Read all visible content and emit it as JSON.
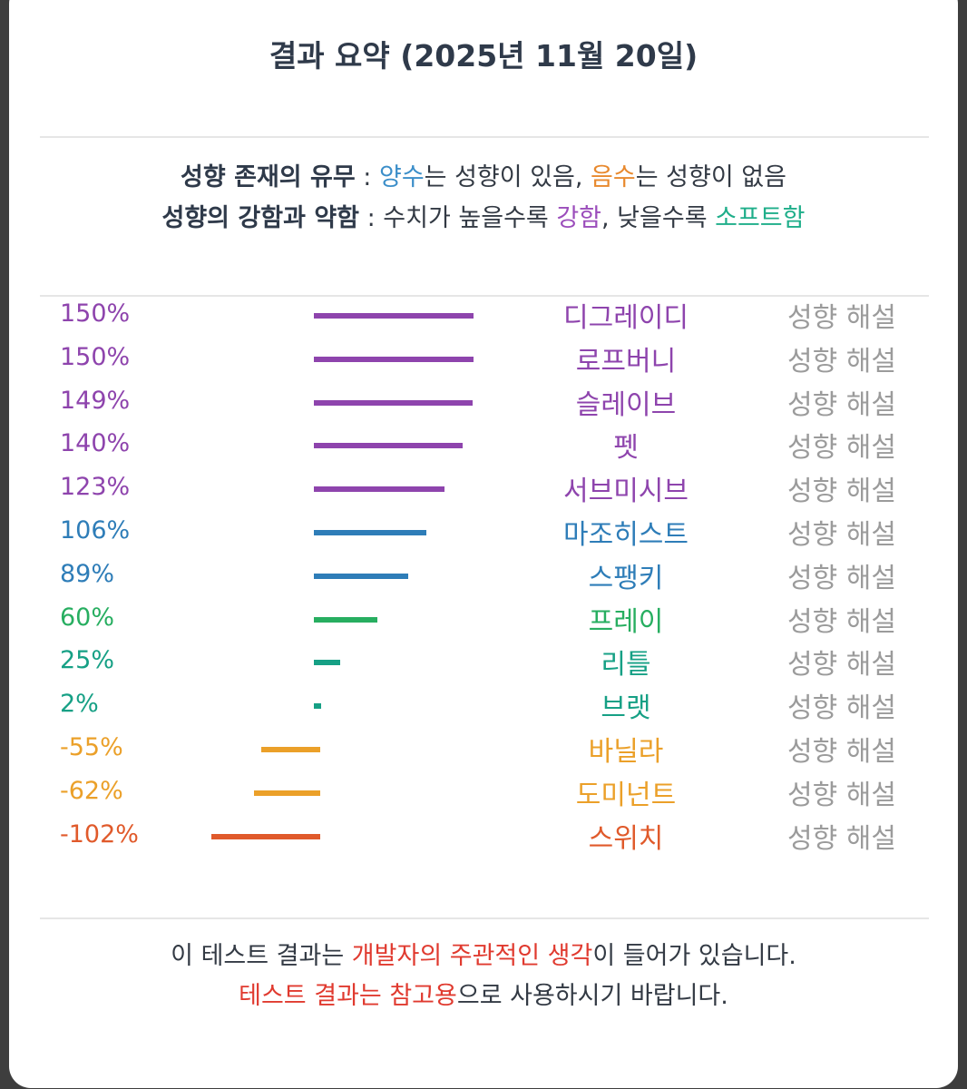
{
  "title": "결과 요약 (2025년 11월 20일)",
  "legend": {
    "line1": {
      "label": "성향 존재의 유무",
      "sep": " : ",
      "positive_word": "양수",
      "positive_rest": "는 성향이 있음, ",
      "negative_word": "음수",
      "negative_rest": "는 성향이 없음"
    },
    "line2": {
      "label": "성향의 강함과 약함",
      "sep": " : ",
      "text_a": "수치가 높을수록 ",
      "strong_word": "강함",
      "text_b": ", 낮을수록 ",
      "soft_word": "소프트함"
    },
    "colors": {
      "positive": "#3b8ec9",
      "negative": "#e8892e",
      "strong": "#9b4dbb",
      "soft": "#1fae8a"
    }
  },
  "results": [
    {
      "percent_label": "150%",
      "value": 150,
      "name": "디그레이디",
      "color": "#8e44ad",
      "explain_label": "성향 해설"
    },
    {
      "percent_label": "150%",
      "value": 150,
      "name": "로프버니",
      "color": "#8e44ad",
      "explain_label": "성향 해설"
    },
    {
      "percent_label": "149%",
      "value": 149,
      "name": "슬레이브",
      "color": "#8e44ad",
      "explain_label": "성향 해설"
    },
    {
      "percent_label": "140%",
      "value": 140,
      "name": "펫",
      "color": "#8e44ad",
      "explain_label": "성향 해설"
    },
    {
      "percent_label": "123%",
      "value": 123,
      "name": "서브미시브",
      "color": "#8e44ad",
      "explain_label": "성향 해설"
    },
    {
      "percent_label": "106%",
      "value": 106,
      "name": "마조히스트",
      "color": "#2e7db8",
      "explain_label": "성향 해설"
    },
    {
      "percent_label": "89%",
      "value": 89,
      "name": "스팽키",
      "color": "#2e7db8",
      "explain_label": "성향 해설"
    },
    {
      "percent_label": "60%",
      "value": 60,
      "name": "프레이",
      "color": "#27ae60",
      "explain_label": "성향 해설"
    },
    {
      "percent_label": "25%",
      "value": 25,
      "name": "리틀",
      "color": "#16a085",
      "explain_label": "성향 해설"
    },
    {
      "percent_label": "2%",
      "value": 2,
      "name": "브랫",
      "color": "#16a085",
      "explain_label": "성향 해설"
    },
    {
      "percent_label": "-55%",
      "value": -55,
      "name": "바닐라",
      "color": "#eba029",
      "explain_label": "성향 해설"
    },
    {
      "percent_label": "-62%",
      "value": -62,
      "name": "도미넌트",
      "color": "#eba029",
      "explain_label": "성향 해설"
    },
    {
      "percent_label": "-102%",
      "value": -102,
      "name": "스위치",
      "color": "#e05a2b",
      "explain_label": "성향 해설"
    }
  ],
  "footer": {
    "line1_a": "이 테스트 결과는 ",
    "line1_highlight": "개발자의 주관적인 생각",
    "line1_b": "이 들어가 있습니다.",
    "line2_highlight": "테스트 결과는 참고용",
    "line2_b": "으로 사용하시기 바랍니다.",
    "highlight_color": "#e03a2f"
  }
}
